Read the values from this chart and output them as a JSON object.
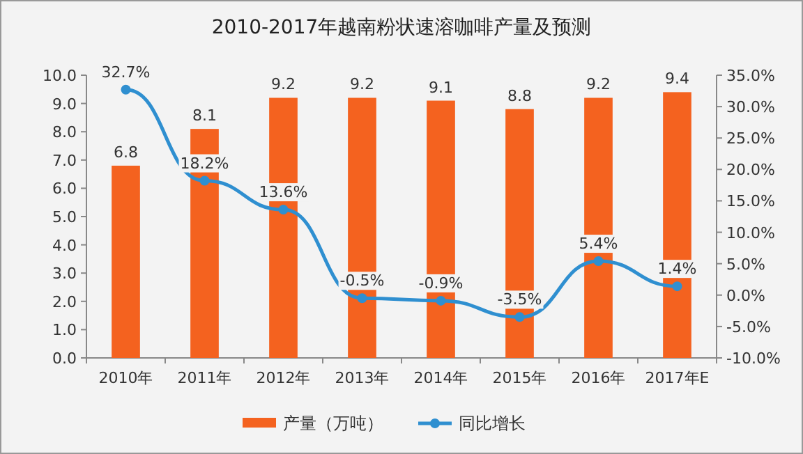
{
  "chart_data": {
    "type": "bar",
    "title": "2010-2017年越南粉状速溶咖啡产量及预测",
    "categories": [
      "2010年",
      "2011年",
      "2012年",
      "2013年",
      "2014年",
      "2015年",
      "2016年",
      "2017年E"
    ],
    "series": [
      {
        "name": "产量（万吨）",
        "color": "#f4621f",
        "values": [
          6.8,
          8.1,
          9.2,
          9.2,
          9.1,
          8.8,
          9.2,
          9.4
        ],
        "value_labels": [
          "6.8",
          "8.1",
          "9.2",
          "9.2",
          "9.1",
          "8.8",
          "9.2",
          "9.4"
        ]
      },
      {
        "name": "同比增长",
        "type": "line",
        "axis": "y2",
        "color": "#2f8fd0",
        "marker": "circle",
        "values": [
          32.7,
          18.2,
          13.6,
          -0.5,
          -0.9,
          -3.5,
          5.4,
          1.4
        ],
        "value_labels": [
          "32.7%",
          "18.2%",
          "13.6%",
          "-0.5%",
          "-0.9%",
          "-3.5%",
          "5.4%",
          "1.4%"
        ]
      }
    ],
    "ylim": [
      0,
      10
    ],
    "yticks": [
      {
        "value": 0,
        "label": "0.0"
      },
      {
        "value": 1,
        "label": "1.0"
      },
      {
        "value": 2,
        "label": "2.0"
      },
      {
        "value": 3,
        "label": "3.0"
      },
      {
        "value": 4,
        "label": "4.0"
      },
      {
        "value": 5,
        "label": "5.0"
      },
      {
        "value": 6,
        "label": "6.0"
      },
      {
        "value": 7,
        "label": "7.0"
      },
      {
        "value": 8,
        "label": "8.0"
      },
      {
        "value": 9,
        "label": "9.0"
      },
      {
        "value": 10,
        "label": "10.0"
      }
    ],
    "y2lim": [
      -10,
      35
    ],
    "y2ticks": [
      {
        "value": -10,
        "label": "-10.0%"
      },
      {
        "value": -5,
        "label": "-5.0%"
      },
      {
        "value": 0,
        "label": "0.0%"
      },
      {
        "value": 5,
        "label": "5.0%"
      },
      {
        "value": 10,
        "label": "10.0%"
      },
      {
        "value": 15,
        "label": "15.0%"
      },
      {
        "value": 20,
        "label": "20.0%"
      },
      {
        "value": 25,
        "label": "25.0%"
      },
      {
        "value": 30,
        "label": "30.0%"
      },
      {
        "value": 35,
        "label": "35.0%"
      }
    ],
    "legend": "bottom"
  }
}
